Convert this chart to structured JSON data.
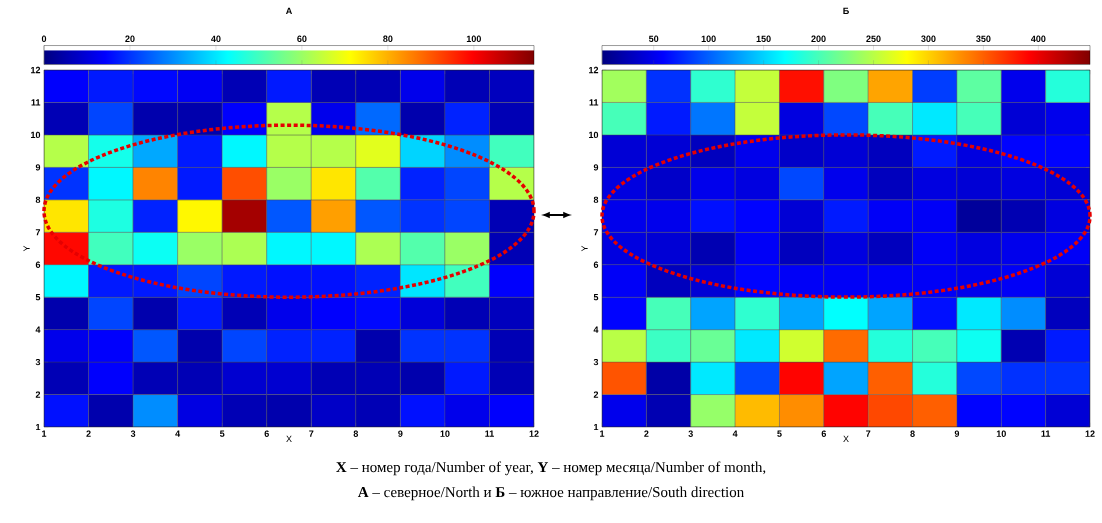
{
  "chart_data": [
    {
      "type": "heatmap",
      "title": "А",
      "xlabel": "X",
      "ylabel": "Y",
      "x": [
        1.5,
        2.5,
        3.5,
        4.5,
        5.5,
        6.5,
        7.5,
        8.5,
        9.5,
        10.5,
        11.5
      ],
      "y": [
        11.5,
        10.5,
        9.5,
        8.5,
        7.5,
        6.5,
        5.5,
        4.5,
        3.5,
        2.5,
        1.5
      ],
      "xlim": [
        1,
        12
      ],
      "ylim": [
        1,
        12
      ],
      "xticks": [
        1,
        2,
        3,
        4,
        5,
        6,
        7,
        8,
        9,
        10,
        11,
        12
      ],
      "yticks": [
        1,
        2,
        3,
        4,
        5,
        6,
        7,
        8,
        9,
        10,
        11,
        12
      ],
      "cells": [
        [
          14,
          17,
          15,
          13,
          6,
          17,
          6,
          6,
          12,
          6,
          7
        ],
        [
          6,
          22,
          5,
          5,
          14,
          63,
          12,
          26,
          5,
          18,
          6
        ],
        [
          63,
          45,
          33,
          17,
          42,
          63,
          63,
          68,
          38,
          30,
          50
        ],
        [
          20,
          42,
          85,
          17,
          91,
          60,
          74,
          52,
          18,
          22,
          63
        ],
        [
          74,
          46,
          18,
          72,
          110,
          24,
          82,
          24,
          20,
          22,
          6
        ],
        [
          99,
          50,
          44,
          60,
          62,
          42,
          42,
          62,
          52,
          60,
          6
        ],
        [
          42,
          17,
          17,
          22,
          17,
          16,
          16,
          18,
          40,
          50,
          14
        ],
        [
          5,
          22,
          5,
          17,
          6,
          12,
          14,
          15,
          10,
          6,
          7
        ],
        [
          12,
          14,
          24,
          5,
          22,
          18,
          18,
          5,
          20,
          20,
          6
        ],
        [
          6,
          14,
          6,
          6,
          9,
          9,
          6,
          6,
          5,
          17,
          6
        ],
        [
          16,
          5,
          30,
          11,
          6,
          5,
          8,
          6,
          16,
          12,
          14
        ]
      ],
      "clim": [
        0,
        114
      ],
      "cticks": [
        0,
        20,
        40,
        60,
        80,
        100
      ],
      "annotations": [
        "**X** – номер года/Number of year, **Y** – номер месяца/Number of month,",
        "**А** – северное/North и **Б** – южное направление/South direction"
      ]
    },
    {
      "type": "heatmap",
      "title": "Б",
      "xlabel": "X",
      "ylabel": "Y",
      "x": [
        1.5,
        2.5,
        3.5,
        4.5,
        5.5,
        6.5,
        7.5,
        8.5,
        9.5,
        10.5,
        11.5
      ],
      "y": [
        11.5,
        10.5,
        9.5,
        8.5,
        7.5,
        6.5,
        5.5,
        4.5,
        3.5,
        2.5,
        1.5
      ],
      "xlim": [
        1,
        12
      ],
      "ylim": [
        1,
        12
      ],
      "xticks": [
        1,
        2,
        3,
        4,
        5,
        6,
        7,
        8,
        9,
        10,
        11,
        12
      ],
      "yticks": [
        1,
        2,
        3,
        4,
        5,
        6,
        7,
        8,
        9,
        10,
        11,
        12
      ],
      "cells": [
        [
          240,
          80,
          190,
          255,
          385,
          225,
          320,
          85,
          210,
          50,
          185
        ],
        [
          200,
          70,
          110,
          255,
          45,
          90,
          200,
          160,
          200,
          40,
          50
        ],
        [
          40,
          40,
          30,
          50,
          35,
          40,
          30,
          70,
          45,
          60,
          60
        ],
        [
          45,
          35,
          50,
          45,
          90,
          50,
          30,
          45,
          40,
          45,
          40
        ],
        [
          50,
          50,
          65,
          60,
          40,
          70,
          55,
          55,
          15,
          25,
          45
        ],
        [
          45,
          40,
          25,
          55,
          30,
          45,
          30,
          55,
          45,
          50,
          55
        ],
        [
          55,
          30,
          40,
          60,
          55,
          55,
          55,
          55,
          50,
          55,
          40
        ],
        [
          60,
          200,
          130,
          190,
          130,
          170,
          130,
          65,
          160,
          120,
          30
        ],
        [
          250,
          195,
          215,
          160,
          260,
          345,
          185,
          200,
          175,
          25,
          70
        ],
        [
          355,
          20,
          160,
          90,
          390,
          130,
          350,
          185,
          90,
          80,
          80
        ],
        [
          50,
          25,
          235,
          310,
          330,
          390,
          360,
          350,
          60,
          60,
          40
        ]
      ],
      "clim": [
        3,
        447
      ],
      "cticks": [
        50,
        100,
        150,
        200,
        250,
        300,
        350,
        400
      ]
    }
  ]
}
